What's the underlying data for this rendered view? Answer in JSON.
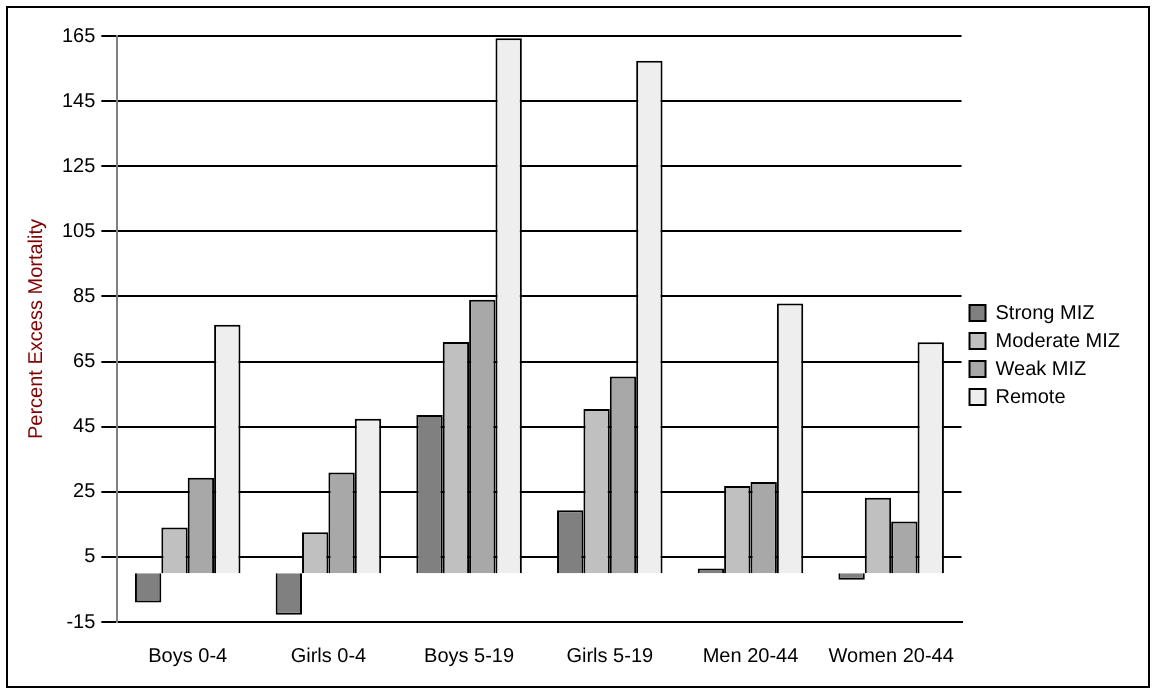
{
  "chart_data": {
    "type": "bar",
    "ylabel": "Percent Excess Mortality",
    "categories": [
      "Boys 0-4",
      "Girls 0-4",
      "Boys 5-19",
      "Girls 5-19",
      "Men 20-44",
      "Women 20-44"
    ],
    "series": [
      {
        "name": "Strong MIZ",
        "color": "#808080",
        "values": [
          -9,
          -12.8,
          48.6,
          19.3,
          1.4,
          -2
        ]
      },
      {
        "name": "Moderate MIZ",
        "color": "#c0c0c0",
        "values": [
          14,
          12.6,
          71,
          50.4,
          26.8,
          23.2
        ]
      },
      {
        "name": "Weak MIZ",
        "color": "#a8a8a8",
        "values": [
          29.3,
          30.9,
          84,
          60.4,
          28,
          15.9
        ]
      },
      {
        "name": "Remote",
        "color": "#eeeeee",
        "values": [
          76.3,
          47.4,
          164.3,
          157.4,
          82.8,
          70.9
        ]
      }
    ],
    "ylim": [
      -15,
      165
    ],
    "yticks": [
      -15,
      5,
      25,
      45,
      65,
      85,
      105,
      125,
      145,
      165
    ],
    "grid": "y",
    "legend": "right"
  }
}
